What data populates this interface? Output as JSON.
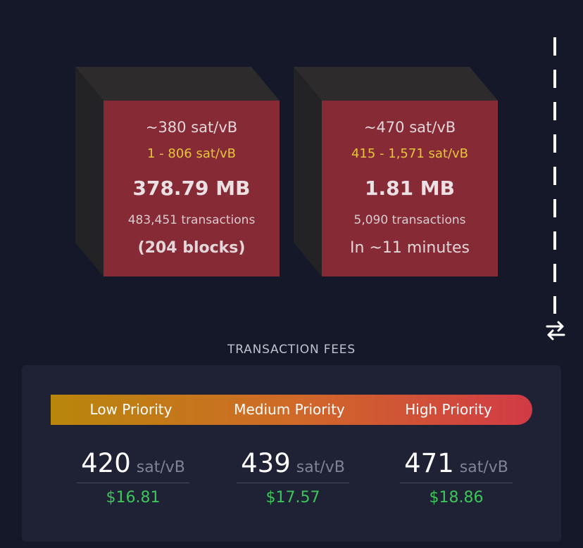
{
  "blocks": [
    {
      "median_fee": "~380 sat/vB",
      "fee_range": "1 - 806 sat/vB",
      "size": "378.79 MB",
      "tx_count": "483,451 transactions",
      "eta": "(204 blocks)"
    },
    {
      "median_fee": "~470 sat/vB",
      "fee_range": "415 - 1,571 sat/vB",
      "size": "1.81 MB",
      "tx_count": "5,090 transactions",
      "eta": "In ~11 minutes"
    }
  ],
  "fees": {
    "title": "TRANSACTION FEES",
    "low": {
      "label": "Low Priority",
      "rate": "420",
      "unit": "sat/vB",
      "usd": "$16.81"
    },
    "medium": {
      "label": "Medium Priority",
      "rate": "439",
      "unit": "sat/vB",
      "usd": "$17.57"
    },
    "high": {
      "label": "High Priority",
      "rate": "471",
      "unit": "sat/vB",
      "usd": "$18.86"
    }
  },
  "icons": {
    "swap": "swap-arrows-icon"
  },
  "colors": {
    "background": "#141828",
    "block_face": "#862b35",
    "fee_range": "#e6c43c",
    "usd": "#3cc55b",
    "bar_start": "#b8860b",
    "bar_end": "#d13a45"
  }
}
